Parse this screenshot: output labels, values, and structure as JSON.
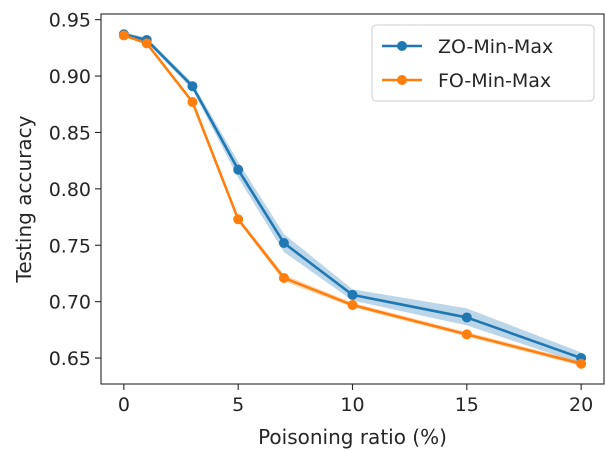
{
  "chart_data": {
    "type": "line",
    "xlabel": "Poisoning ratio (%)",
    "ylabel": "Testing accuracy",
    "xlim": [
      -1,
      21
    ],
    "ylim": [
      0.627,
      0.955
    ],
    "xticks": [
      0,
      5,
      10,
      15,
      20
    ],
    "xtick_labels": [
      "0",
      "5",
      "10",
      "15",
      "20"
    ],
    "yticks": [
      0.65,
      0.7,
      0.75,
      0.8,
      0.85,
      0.9,
      0.95
    ],
    "ytick_labels": [
      "0.65",
      "0.70",
      "0.75",
      "0.80",
      "0.85",
      "0.90",
      "0.95"
    ],
    "grid": false,
    "legend_position": "top-right",
    "x": [
      0,
      1,
      3,
      5,
      7,
      10,
      15,
      20
    ],
    "series": [
      {
        "name": "ZO-Min-Max",
        "color": "#1f77b4",
        "values": [
          0.937,
          0.932,
          0.891,
          0.817,
          0.752,
          0.706,
          0.686,
          0.65
        ],
        "band_lower": [
          0.935,
          0.93,
          0.888,
          0.81,
          0.744,
          0.701,
          0.679,
          0.645
        ],
        "band_upper": [
          0.939,
          0.934,
          0.894,
          0.824,
          0.76,
          0.711,
          0.694,
          0.655
        ]
      },
      {
        "name": "FO-Min-Max",
        "color": "#ff7f0e",
        "values": [
          0.936,
          0.929,
          0.877,
          0.773,
          0.721,
          0.697,
          0.671,
          0.645
        ],
        "band_lower": [
          0.935,
          0.928,
          0.875,
          0.771,
          0.718,
          0.695,
          0.669,
          0.643
        ],
        "band_upper": [
          0.937,
          0.93,
          0.879,
          0.775,
          0.724,
          0.699,
          0.673,
          0.647
        ]
      }
    ]
  }
}
